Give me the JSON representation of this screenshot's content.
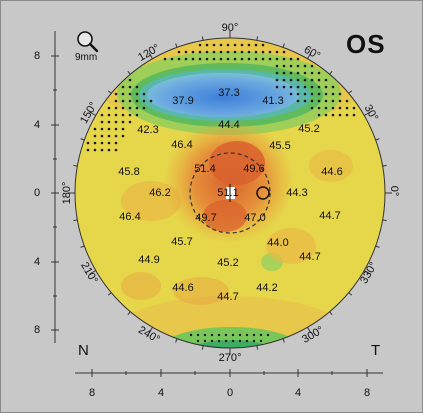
{
  "header": {
    "eye": "OS",
    "scale": "9mm"
  },
  "icons": {
    "zoom": "magnifier-icon"
  },
  "corners": {
    "left": "N",
    "right": "T"
  },
  "left_axis": [
    "8",
    "4",
    "0",
    "4",
    "8"
  ],
  "bottom_axis": [
    "8",
    "4",
    "0",
    "4",
    "8"
  ],
  "angles": [
    {
      "label": "90°"
    },
    {
      "label": "60°"
    },
    {
      "label": "30°"
    },
    {
      "label": "0°"
    },
    {
      "label": "330°"
    },
    {
      "label": "300°"
    },
    {
      "label": "270°"
    },
    {
      "label": "240°"
    },
    {
      "label": "210°"
    },
    {
      "label": "180°"
    },
    {
      "label": "150°"
    },
    {
      "label": "120°"
    }
  ],
  "values": [
    "37.9",
    "37.3",
    "41.3",
    "42.3",
    "44.4",
    "45.2",
    "46.4",
    "45.5",
    "45.8",
    "51.4",
    "49.6",
    "44.6",
    "46.2",
    "51.1",
    "44.3",
    "46.4",
    "49.7",
    "47.0",
    "44.7",
    "45.7",
    "44.0",
    "44.9",
    "45.2",
    "44.7",
    "44.6",
    "44.2",
    "44.7"
  ],
  "colors": {
    "background": "#c8c8c8",
    "yellow": "#e6d64a",
    "orange": "#e89a3a",
    "red": "#d86a35",
    "green": "#6fbe55",
    "blue": "#5e9fe0"
  }
}
